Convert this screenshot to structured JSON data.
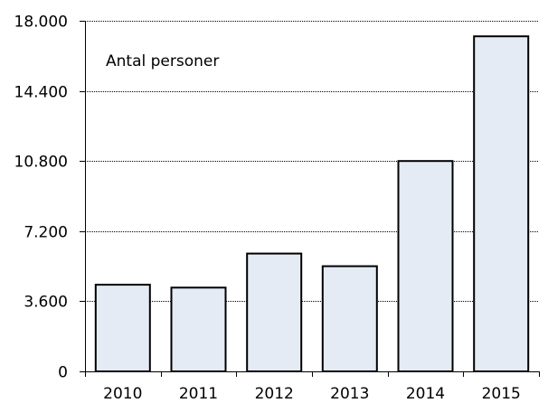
{
  "chart_data": {
    "type": "bar",
    "title": "",
    "annotation": "Antal personer",
    "xlabel": "",
    "ylabel": "",
    "categories": [
      "2010",
      "2011",
      "2012",
      "2013",
      "2014",
      "2015"
    ],
    "values": [
      4450,
      4300,
      6050,
      5400,
      10800,
      17200
    ],
    "ylim": [
      0,
      18000
    ],
    "yticks": [
      0,
      3600,
      7200,
      10800,
      14400,
      18000
    ],
    "ytick_labels": [
      "0",
      "3.600",
      "7.200",
      "10.800",
      "14.400",
      "18.000"
    ],
    "grid": "horizontal dotted",
    "bar_fill": "#e4ebf5",
    "bar_stroke": "#000000"
  }
}
